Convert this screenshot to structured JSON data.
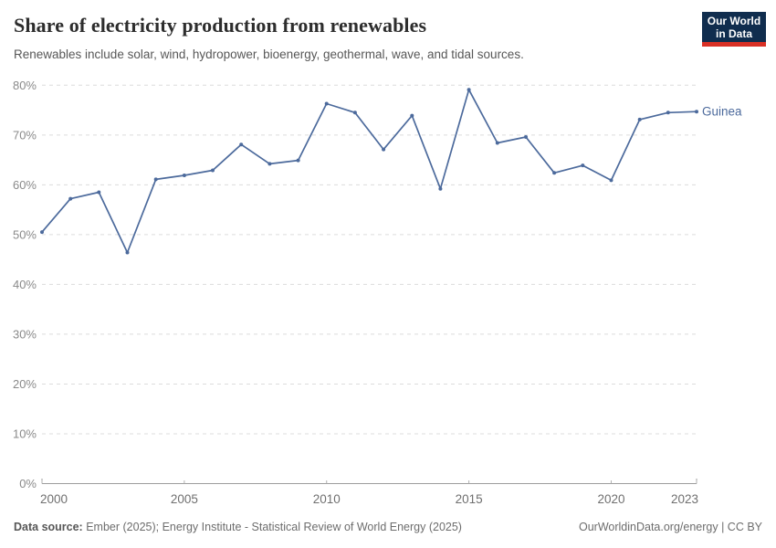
{
  "header": {
    "title": "Share of electricity production from renewables",
    "subtitle": "Renewables include solar, wind, hydropower, bioenergy, geothermal, wave, and tidal sources."
  },
  "logo": {
    "line1": "Our World",
    "line2": "in Data",
    "bg_color": "#102d4e",
    "bar_color": "#d93025"
  },
  "chart_data": {
    "type": "line",
    "title": "Share of electricity production from renewables",
    "x": [
      2000,
      2001,
      2002,
      2003,
      2004,
      2005,
      2006,
      2007,
      2008,
      2009,
      2010,
      2011,
      2012,
      2013,
      2014,
      2015,
      2016,
      2017,
      2018,
      2019,
      2020,
      2021,
      2022,
      2023
    ],
    "series": [
      {
        "name": "Guinea",
        "color": "#4c6a9c",
        "values": [
          50.5,
          57.2,
          58.5,
          46.4,
          61.1,
          61.9,
          62.9,
          68.1,
          64.2,
          64.9,
          76.3,
          74.5,
          67.1,
          73.9,
          59.2,
          79.1,
          68.4,
          69.6,
          62.4,
          63.9,
          60.9,
          73.1,
          74.5,
          74.7
        ]
      }
    ],
    "ylim": [
      0,
      80
    ],
    "ytick_values": [
      0,
      10,
      20,
      30,
      40,
      50,
      60,
      70,
      80
    ],
    "ytick_labels": [
      "0%",
      "10%",
      "20%",
      "30%",
      "40%",
      "50%",
      "60%",
      "70%",
      "80%"
    ],
    "xtick_values": [
      2000,
      2005,
      2010,
      2015,
      2020,
      2023
    ],
    "xtick_labels": [
      "2000",
      "2005",
      "2010",
      "2015",
      "2020",
      "2023"
    ],
    "grid": "horizontal-dashed",
    "legend": "end-of-line-label",
    "colors": {
      "line": "#4c6a9c",
      "gridline": "#dcdcdc",
      "axis": "#9c9c9c",
      "tick": "#b0b0b0",
      "ytick_text": "#8a8a8a",
      "xtick_text": "#6f6f6f"
    }
  },
  "footer": {
    "datasource_label": "Data source:",
    "datasource_text": " Ember (2025); Energy Institute - Statistical Review of World Energy (2025)",
    "right_text": "OurWorldinData.org/energy | CC BY"
  }
}
